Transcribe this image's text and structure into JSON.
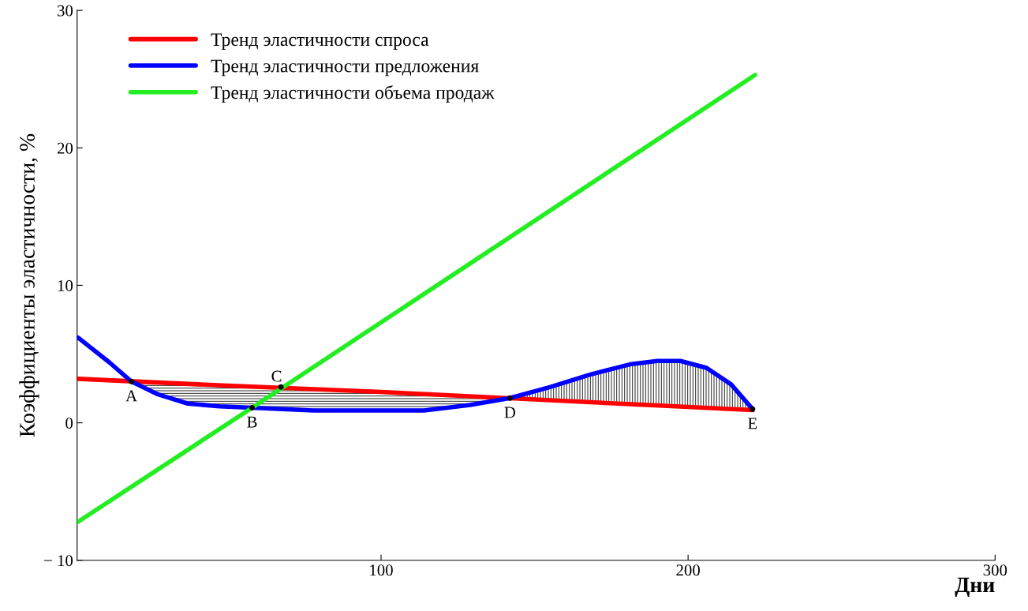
{
  "chart_data": {
    "type": "line",
    "xlabel": "Дни",
    "ylabel": "Коэффициенты эластичности, %",
    "xlim": [
      1,
      300
    ],
    "ylim": [
      -10,
      30
    ],
    "xticks": [
      100,
      200,
      300
    ],
    "yticks": [
      {
        "value": -10,
        "label": "− 10"
      },
      0,
      10,
      20,
      30
    ],
    "legend": "top left",
    "grid": false,
    "marker": "none",
    "line_style": "solid",
    "series": [
      {
        "name": "Тренд эластичности спроса",
        "color": "#ff0000",
        "x": [
          1.3,
          50,
          100,
          150,
          200,
          221
        ],
        "values": [
          3.2,
          2.7,
          2.24,
          1.7,
          1.15,
          0.92
        ]
      },
      {
        "name": "Тренд эластичности предложения",
        "color": "#0000ff",
        "x": [
          1.3,
          11.5,
          18.7,
          27,
          37,
          47.4,
          58,
          78,
          100,
          114,
          129,
          142,
          155,
          168,
          181,
          190,
          197.5,
          206,
          214,
          221
        ],
        "values": [
          6.2,
          4.4,
          3.0,
          2.1,
          1.4,
          1.2,
          1.1,
          0.9,
          0.9,
          0.9,
          1.3,
          1.8,
          2.6,
          3.5,
          4.25,
          4.5,
          4.5,
          4.0,
          2.8,
          1.0
        ]
      },
      {
        "name": "Тренд эластичности объема продаж",
        "color": "#22ee22",
        "x": [
          1.3,
          58,
          221.8
        ],
        "values": [
          -7.2,
          1.1,
          25.3
        ]
      }
    ],
    "annotations": [
      {
        "text": "A",
        "x": 18.7,
        "y": 3.0
      },
      {
        "text": "B",
        "x": 58,
        "y": 1.1
      },
      {
        "text": "C",
        "x": 67.4,
        "y": 2.6
      },
      {
        "text": "D",
        "x": 142,
        "y": 1.8
      },
      {
        "text": "E",
        "x": 221,
        "y": 1.0
      }
    ]
  }
}
